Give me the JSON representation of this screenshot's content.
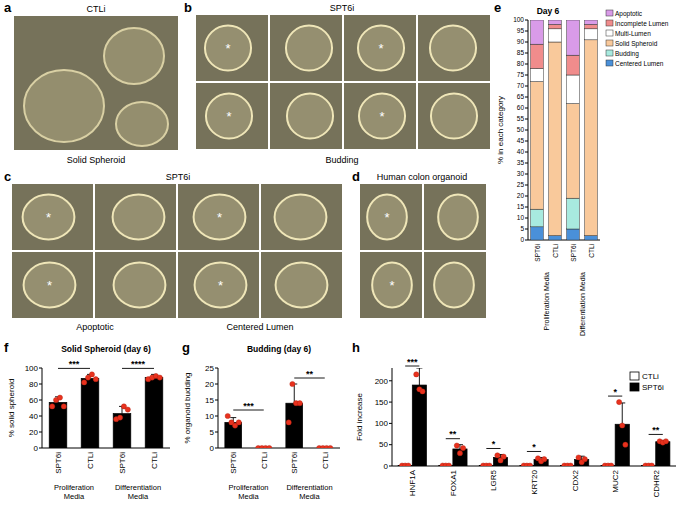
{
  "image_panels": [
    {
      "panel_label": "a",
      "title": "CTLi",
      "caption": "Solid Spheroid"
    },
    {
      "panel_label": "b",
      "title": "SPT6i",
      "caption": "Budding",
      "marker": "*"
    },
    {
      "panel_label": "c",
      "title": "SPT6i",
      "captions": [
        "Apoptotic",
        "Centered Lumen"
      ],
      "marker": "*"
    },
    {
      "panel_label": "d",
      "title": "Human colon organoid",
      "marker": "*"
    }
  ],
  "chart_data": [
    {
      "type": "bar",
      "stacked": true,
      "panel_label": "e",
      "title": "Day 6",
      "y_label": "% in each category",
      "categories": [
        "SPT6i",
        "CTLi",
        "SPT6i",
        "CTLi"
      ],
      "groups": [
        "Proliferation Media",
        "Differentiation Media"
      ],
      "ylim": [
        0,
        100
      ],
      "yticks": [
        0,
        5,
        10,
        15,
        20,
        25,
        30,
        35,
        40,
        45,
        50,
        55,
        60,
        65,
        70,
        75,
        80,
        85,
        90,
        95,
        100
      ],
      "legend": "upper right",
      "series": [
        {
          "name": "Centered Lumen",
          "color": "#4a90d9",
          "values": [
            6,
            2,
            5,
            2
          ],
          "errors": [
            2,
            1,
            2,
            0.5
          ]
        },
        {
          "name": "Budding",
          "color": "#a8eadf",
          "values": [
            8,
            0,
            14,
            0
          ],
          "errors": [
            2,
            0,
            4,
            0
          ]
        },
        {
          "name": "Solid Spheroid",
          "color": "#f9c99b",
          "values": [
            58,
            88,
            43,
            89
          ],
          "errors": [
            4,
            2,
            6,
            2
          ]
        },
        {
          "name": "Multi-Lumen",
          "color": "#ffffff",
          "values": [
            6,
            6,
            13,
            5
          ],
          "errors": [
            3,
            1,
            4,
            1
          ]
        },
        {
          "name": "Incomplete Lumen",
          "color": "#f08c8c",
          "values": [
            11,
            2,
            9,
            2
          ],
          "errors": [
            2,
            1,
            3,
            1
          ]
        },
        {
          "name": "Apoptotic",
          "color": "#d99be8",
          "values": [
            11,
            2,
            16,
            2
          ],
          "errors": [
            2,
            1,
            2,
            0.5
          ]
        }
      ]
    },
    {
      "type": "bar",
      "panel_label": "f",
      "title": "Solid Spheroid (day 6)",
      "y_label": "% solid spheroid",
      "categories": [
        "SPT6i",
        "CTLi",
        "SPT6i",
        "CTLi"
      ],
      "groups": [
        "Proliferation Media",
        "Differentiation Media"
      ],
      "color": "#000000",
      "values": [
        57,
        87,
        43,
        88
      ],
      "errors": [
        7,
        5,
        9,
        4
      ],
      "points": [
        [
          52,
          60,
          63,
          52
        ],
        [
          82,
          88,
          92,
          86
        ],
        [
          36,
          38,
          52,
          48
        ],
        [
          86,
          88,
          90,
          88
        ]
      ],
      "ylim": [
        0,
        100
      ],
      "yticks": [
        0,
        20,
        40,
        60,
        80,
        100
      ],
      "significance": [
        {
          "label": "***",
          "between": [
            0,
            1
          ]
        },
        {
          "label": "****",
          "between": [
            2,
            3
          ]
        }
      ]
    },
    {
      "type": "bar",
      "panel_label": "g",
      "title": "Budding (day 6)",
      "y_label": "% organoid budding",
      "categories": [
        "SPT6i",
        "CTLi",
        "SPT6i",
        "CTLi"
      ],
      "groups": [
        "Proliferation Media",
        "Differentiation Media"
      ],
      "color": "#000000",
      "values": [
        8,
        0,
        14,
        0
      ],
      "errors": [
        1.5,
        0,
        6,
        0
      ],
      "points": [
        [
          10,
          8,
          7,
          8
        ],
        [
          0,
          0,
          0,
          0
        ],
        [
          8,
          20,
          14,
          14
        ],
        [
          0,
          0,
          0,
          0
        ]
      ],
      "ylim": [
        0,
        25
      ],
      "yticks": [
        0,
        5,
        10,
        15,
        20,
        25
      ],
      "significance": [
        {
          "label": "***",
          "between": [
            0,
            1
          ]
        },
        {
          "label": "**",
          "between": [
            2,
            3
          ]
        }
      ]
    },
    {
      "type": "bar",
      "panel_label": "h",
      "y_label": "Fold increase",
      "categories": [
        "HNF1A",
        "FOXA1",
        "LGR5",
        "KRT20",
        "CDX2",
        "MUC2",
        "CDHR2"
      ],
      "ylim": [
        0,
        230
      ],
      "yticks": [
        0,
        50,
        100,
        150,
        200
      ],
      "legend": "upper right",
      "series": [
        {
          "name": "CTLi",
          "color": "#ffffff",
          "values": [
            1,
            1,
            1,
            1,
            1,
            1,
            1
          ],
          "points": [
            [
              1,
              1,
              1
            ],
            [
              1,
              1,
              1
            ],
            [
              1,
              1,
              1
            ],
            [
              1,
              1,
              1
            ],
            [
              1,
              1,
              1
            ],
            [
              1,
              1,
              1
            ],
            [
              1,
              1,
              1
            ]
          ]
        },
        {
          "name": "SPT6i",
          "color": "#000000",
          "values": [
            190,
            40,
            20,
            15,
            15,
            98,
            57
          ],
          "errors": [
            40,
            10,
            7,
            5,
            8,
            50,
            3
          ],
          "points": [
            [
              215,
              180,
              175
            ],
            [
              48,
              30,
              42
            ],
            [
              25,
              13,
              22
            ],
            [
              18,
              11,
              16
            ],
            [
              20,
              9,
              16
            ],
            [
              150,
              95,
              50
            ],
            [
              58,
              55,
              58
            ]
          ]
        }
      ],
      "significance": [
        {
          "label": "***",
          "category": 0
        },
        {
          "label": "**",
          "category": 1
        },
        {
          "label": "*",
          "category": 2
        },
        {
          "label": "*",
          "category": 3
        },
        {
          "label": "*",
          "category": 5
        },
        {
          "label": "**",
          "category": 6
        }
      ]
    }
  ]
}
